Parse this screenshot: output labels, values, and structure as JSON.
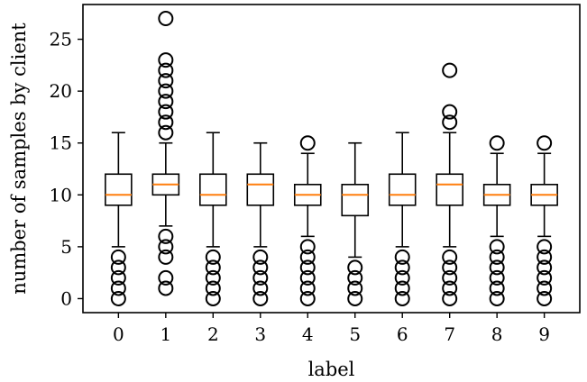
{
  "chart_data": {
    "type": "box",
    "xlabel": "label",
    "ylabel": "number of samples by client",
    "ylim": [
      -1.35,
      28.35
    ],
    "yticks": [
      0,
      5,
      10,
      15,
      20,
      25
    ],
    "grid": false,
    "categories": [
      "0",
      "1",
      "2",
      "3",
      "4",
      "5",
      "6",
      "7",
      "8",
      "9"
    ],
    "boxes": [
      {
        "label": "0",
        "whislo": 5,
        "q1": 9,
        "med": 10,
        "q3": 12,
        "whishi": 16,
        "fliers": [
          0,
          1,
          2,
          3,
          4
        ]
      },
      {
        "label": "1",
        "whislo": 7,
        "q1": 10,
        "med": 11,
        "q3": 12,
        "whishi": 15,
        "fliers": [
          1,
          2,
          4,
          5,
          6,
          16,
          17,
          18,
          19,
          20,
          21,
          22,
          23,
          27
        ]
      },
      {
        "label": "2",
        "whislo": 5,
        "q1": 9,
        "med": 10,
        "q3": 12,
        "whishi": 16,
        "fliers": [
          0,
          1,
          2,
          3,
          4
        ]
      },
      {
        "label": "3",
        "whislo": 5,
        "q1": 9,
        "med": 11,
        "q3": 12,
        "whishi": 15,
        "fliers": [
          0,
          1,
          2,
          3,
          4
        ]
      },
      {
        "label": "4",
        "whislo": 6,
        "q1": 9,
        "med": 10,
        "q3": 11,
        "whishi": 14,
        "fliers": [
          0,
          1,
          2,
          3,
          4,
          5,
          15
        ]
      },
      {
        "label": "5",
        "whislo": 4,
        "q1": 8,
        "med": 10,
        "q3": 11,
        "whishi": 15,
        "fliers": [
          0,
          1,
          2,
          3
        ]
      },
      {
        "label": "6",
        "whislo": 5,
        "q1": 9,
        "med": 10,
        "q3": 12,
        "whishi": 16,
        "fliers": [
          0,
          1,
          2,
          3,
          4
        ]
      },
      {
        "label": "7",
        "whislo": 5,
        "q1": 9,
        "med": 11,
        "q3": 12,
        "whishi": 16,
        "fliers": [
          0,
          1,
          2,
          3,
          4,
          17,
          18,
          22
        ]
      },
      {
        "label": "8",
        "whislo": 6,
        "q1": 9,
        "med": 10,
        "q3": 11,
        "whishi": 14,
        "fliers": [
          0,
          1,
          2,
          3,
          4,
          5,
          15
        ]
      },
      {
        "label": "9",
        "whislo": 6,
        "q1": 9,
        "med": 10,
        "q3": 11,
        "whishi": 14,
        "fliers": [
          0,
          1,
          2,
          3,
          4,
          5,
          15
        ]
      }
    ],
    "colors": {
      "box": "#000000",
      "median": "#ff7f0e",
      "flier": "#000000"
    }
  }
}
